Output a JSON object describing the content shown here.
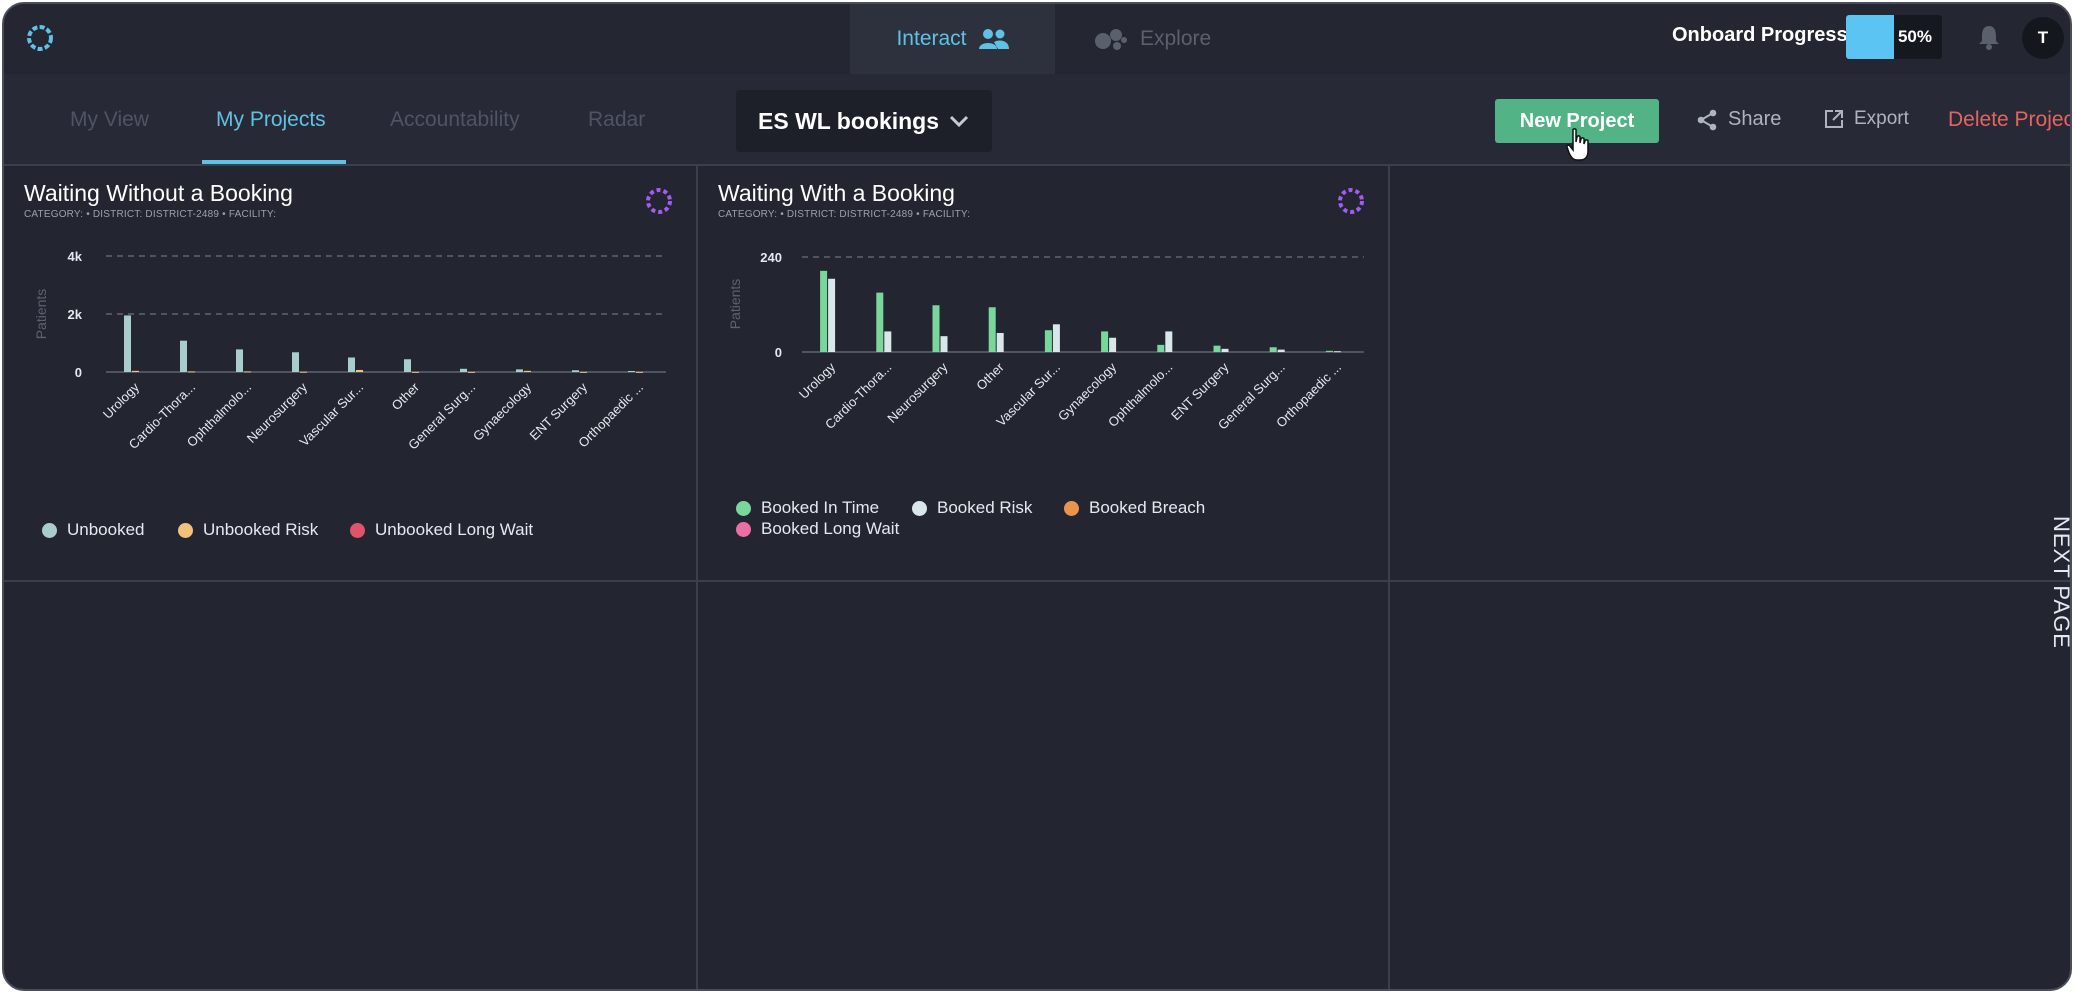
{
  "topbar": {
    "tabs": [
      {
        "label": "Interact",
        "icon": "users-icon",
        "active": true
      },
      {
        "label": "Explore",
        "icon": "bubbles-icon",
        "active": false
      }
    ],
    "onboard_label": "Onboard Progress",
    "onboard_progress": 0.5,
    "onboard_percent": "50%",
    "avatar_initial": "T"
  },
  "subnav": {
    "tabs": [
      "My View",
      "My Projects",
      "Accountability",
      "Radar"
    ],
    "active_tab": "My Projects",
    "dashboard": "ES WL bookings",
    "new_project": "New Project",
    "share": "Share",
    "export": "Export",
    "delete": "Delete Projec"
  },
  "colors": {
    "accent": "#5fc2e4",
    "unbooked": "#a9cdca",
    "unbooked_risk": "#f3c17a",
    "unbooked_long_wait": "#e0536b",
    "booked_in_time": "#7ad79b",
    "booked_risk": "#d9e6ea",
    "booked_breach": "#e8954b",
    "booked_long_wait": "#e96fa5",
    "new_project": "#52b486",
    "delete": "#e4645f"
  },
  "widgets": [
    {
      "title": "Waiting Without a Booking",
      "filters": "CATEGORY:   •   DISTRICT: DISTRICT-2489   •   FACILITY:",
      "legend": [
        "Unbooked",
        "Unbooked Risk",
        "Unbooked Long Wait"
      ]
    },
    {
      "title": "Waiting With a Booking",
      "filters": "CATEGORY:   •   DISTRICT: DISTRICT-2489   •   FACILITY:",
      "legend": [
        "Booked In Time",
        "Booked Risk",
        "Booked Breach",
        "Booked Long Wait"
      ]
    }
  ],
  "chart_data": [
    {
      "type": "bar",
      "title": "Waiting Without a Booking",
      "ylabel": "Patients",
      "ylim": [
        0,
        4000
      ],
      "yticks": [
        "0",
        "2k",
        "4k"
      ],
      "categories": [
        "Urology",
        "Cardio-Thora...",
        "Ophthalmolo...",
        "Neurosurgery",
        "Vascular Sur...",
        "Other",
        "General Surg...",
        "Gynaecology",
        "ENT Surgery",
        "Orthopaedic ..."
      ],
      "series": [
        {
          "name": "Unbooked",
          "values": [
            1950,
            1080,
            780,
            680,
            500,
            440,
            110,
            90,
            60,
            35
          ]
        },
        {
          "name": "Unbooked Risk",
          "values": [
            40,
            20,
            20,
            10,
            70,
            5,
            5,
            40,
            5,
            5
          ]
        },
        {
          "name": "Unbooked Long Wait",
          "values": [
            0,
            0,
            0,
            0,
            0,
            0,
            0,
            0,
            0,
            0
          ]
        }
      ],
      "grid": true,
      "legend_position": "bottom"
    },
    {
      "type": "bar",
      "title": "Waiting With a Booking",
      "ylabel": "Patients",
      "ylim": [
        0,
        240
      ],
      "yticks": [
        "0",
        "240"
      ],
      "categories": [
        "Urology",
        "Cardio-Thora...",
        "Neurosurgery",
        "Other",
        "Vascular Sur...",
        "Gynaecology",
        "Ophthalmolo...",
        "ENT Surgery",
        "General Surg...",
        "Orthopaedic ..."
      ],
      "series": [
        {
          "name": "Booked In Time",
          "values": [
            205,
            150,
            118,
            113,
            55,
            52,
            18,
            16,
            12,
            3
          ]
        },
        {
          "name": "Booked Risk",
          "values": [
            185,
            52,
            40,
            48,
            70,
            36,
            52,
            8,
            6,
            2
          ]
        },
        {
          "name": "Booked Breach",
          "values": [
            0,
            0,
            0,
            0,
            0,
            0,
            0,
            0,
            0,
            0
          ]
        },
        {
          "name": "Booked Long Wait",
          "values": [
            0,
            0,
            0,
            0,
            0,
            0,
            0,
            0,
            0,
            0
          ]
        }
      ],
      "grid": true,
      "legend_position": "bottom"
    }
  ],
  "next_page": "NEXT PAGE"
}
